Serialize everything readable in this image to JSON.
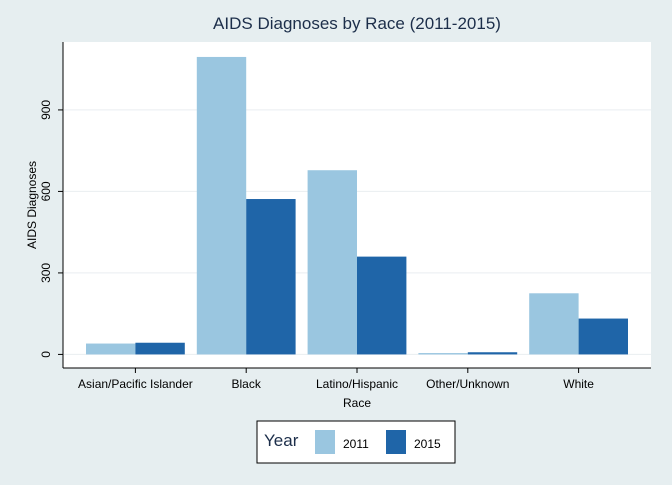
{
  "chart_data": {
    "type": "bar",
    "title": "AIDS Diagnoses by Race (2011-2015)",
    "xlabel": "Race",
    "ylabel": "AIDS Diagnoses",
    "categories": [
      "Asian/Pacific Islander",
      "Black",
      "Latino/Hispanic",
      "Other/Unknown",
      "White"
    ],
    "series": [
      {
        "name": "2011",
        "color": "#9ac6e0",
        "values": [
          40,
          1095,
          678,
          5,
          225
        ]
      },
      {
        "name": "2015",
        "color": "#1f65a8",
        "values": [
          43,
          572,
          360,
          8,
          132
        ]
      }
    ],
    "ylim": [
      -50,
      1150
    ],
    "yticks": [
      0,
      300,
      600,
      900
    ],
    "ytick_labels": [
      "0",
      "300",
      "600",
      "900"
    ],
    "grid": true,
    "legend": {
      "title": "Year",
      "position": "bottom-center"
    }
  },
  "colors": {
    "background": "#e6eef0",
    "plot_area": "#ffffff",
    "gridline": "#e9eef0",
    "title": "#1c2e4a"
  }
}
